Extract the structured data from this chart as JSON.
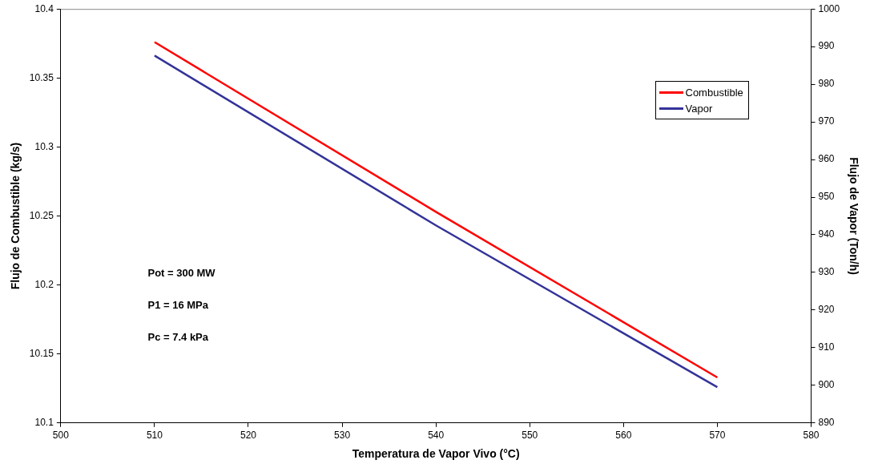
{
  "chart_data": {
    "type": "line",
    "xlabel": "Temperatura de Vapor Vivo (°C)",
    "ylabel": "Flujo de Combustible (kg/s)",
    "y2label": "Flujo de Vapor (Ton/h)",
    "xlim": [
      500,
      580
    ],
    "xticks": [
      500,
      510,
      520,
      530,
      540,
      550,
      560,
      570,
      580
    ],
    "ylim": [
      10.1,
      10.4
    ],
    "yticks": [
      10.1,
      10.15,
      10.2,
      10.25,
      10.3,
      10.35,
      10.4
    ],
    "y2lim": [
      890,
      1000
    ],
    "y2ticks": [
      890,
      900,
      910,
      920,
      930,
      940,
      950,
      960,
      970,
      980,
      990,
      1000
    ],
    "grid": false,
    "legend": "top right",
    "marker": "none",
    "line_style": "solid",
    "annotations": [
      "Pot = 300 MW",
      "P1 = 16 MPa",
      "Pc = 7.4 kPa"
    ],
    "series": [
      {
        "name": "Combustible",
        "color": "#ff0000",
        "x": [
          510,
          540,
          570
        ],
        "values": [
          10.376,
          10.253,
          10.133
        ]
      },
      {
        "name": "Vapor",
        "color": "#333399",
        "axis": "y2",
        "x": [
          510,
          540,
          570
        ],
        "values": [
          987.6,
          942.5,
          899.5
        ]
      }
    ]
  }
}
